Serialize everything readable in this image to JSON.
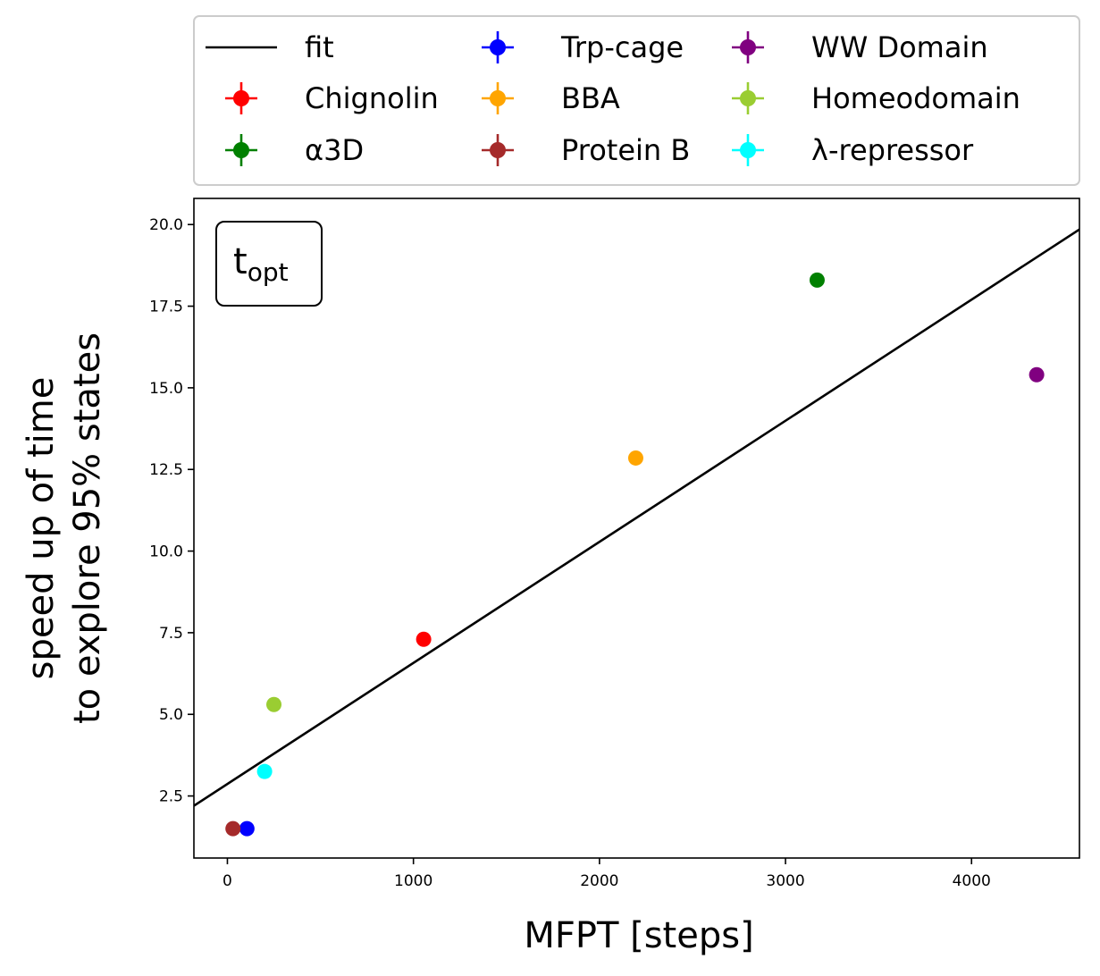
{
  "chart_data": {
    "type": "scatter",
    "xlabel": "MFPT [steps]",
    "ylabel_lines": [
      "speed up of time",
      "to explore 95% states"
    ],
    "xlim": [
      -180,
      4580
    ],
    "ylim": [
      0.6,
      20.8
    ],
    "xticks": [
      0,
      1000,
      2000,
      3000,
      4000
    ],
    "yticks": [
      2.5,
      5.0,
      7.5,
      10.0,
      12.5,
      15.0,
      17.5,
      20.0
    ],
    "grid": false,
    "legend_placement": "above-plot",
    "annotation": {
      "base": "t",
      "subscript": "opt"
    },
    "fit": {
      "name": "fit",
      "color": "#000000",
      "points": [
        [
          -180,
          2.2
        ],
        [
          4580,
          19.85
        ]
      ]
    },
    "series": [
      {
        "name": "Chignolin",
        "color": "#ff0000",
        "x": 1055,
        "y": 7.3
      },
      {
        "name": "α3D",
        "color": "#008000",
        "x": 3170,
        "y": 18.3
      },
      {
        "name": "Trp-cage",
        "color": "#0000ff",
        "x": 105,
        "y": 1.5
      },
      {
        "name": "BBA",
        "color": "#ffa500",
        "x": 2195,
        "y": 12.85
      },
      {
        "name": "Protein B",
        "color": "#a52a2a",
        "x": 30,
        "y": 1.5
      },
      {
        "name": "WW Domain",
        "color": "#800080",
        "x": 4350,
        "y": 15.4
      },
      {
        "name": "Homeodomain",
        "color": "#9acd32",
        "x": 250,
        "y": 5.3
      },
      {
        "name": "λ-repressor",
        "color": "#00ffff",
        "x": 200,
        "y": 3.25
      }
    ]
  }
}
